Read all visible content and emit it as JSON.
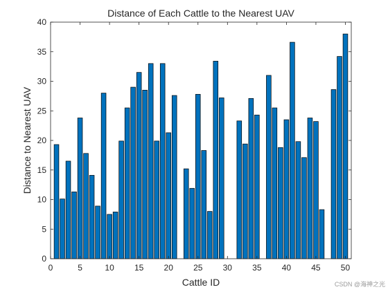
{
  "chart_data": {
    "type": "bar",
    "title": "Distance of Each Cattle to the Nearest UAV",
    "xlabel": "Cattle ID",
    "ylabel": "Distance to Nearest UAV",
    "xlim": [
      0,
      51
    ],
    "ylim": [
      0,
      40
    ],
    "xticks": [
      0,
      5,
      10,
      15,
      20,
      25,
      30,
      35,
      40,
      45,
      50
    ],
    "yticks": [
      0,
      5,
      10,
      15,
      20,
      25,
      30,
      35,
      40
    ],
    "bar_color": "#0072BD",
    "bar_edge_color": "#000000",
    "grid": false,
    "box": true,
    "x": [
      1,
      2,
      3,
      4,
      5,
      6,
      7,
      8,
      9,
      10,
      11,
      12,
      13,
      14,
      15,
      16,
      17,
      18,
      19,
      20,
      21,
      22,
      23,
      24,
      25,
      26,
      27,
      28,
      29,
      30,
      31,
      32,
      33,
      34,
      35,
      36,
      37,
      38,
      39,
      40,
      41,
      42,
      43,
      44,
      45,
      46,
      47,
      48,
      49,
      50
    ],
    "values": [
      19.3,
      10.1,
      16.5,
      11.3,
      23.8,
      17.8,
      14.1,
      8.9,
      28.0,
      7.5,
      7.9,
      19.9,
      25.5,
      29.0,
      31.5,
      28.5,
      33.0,
      19.9,
      33.0,
      21.3,
      27.6,
      0,
      15.2,
      11.9,
      27.8,
      18.3,
      8.0,
      33.4,
      27.2,
      0,
      0,
      23.3,
      19.4,
      27.1,
      24.3,
      0,
      31.0,
      25.5,
      18.8,
      23.5,
      36.6,
      19.8,
      17.1,
      23.8,
      23.2,
      8.3,
      0,
      28.6,
      34.2,
      38.0
    ]
  },
  "watermark": "CSDN @海神之光"
}
